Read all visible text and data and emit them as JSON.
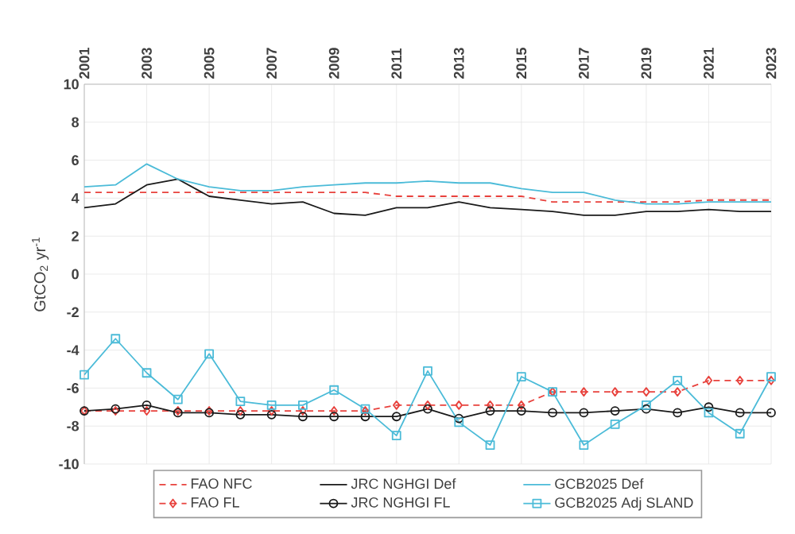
{
  "chart_data": {
    "type": "line",
    "ylabel": "GtCO$_{2}$ yr$^{-1}$",
    "x": [
      2001,
      2002,
      2003,
      2004,
      2005,
      2006,
      2007,
      2008,
      2009,
      2010,
      2011,
      2012,
      2013,
      2014,
      2015,
      2016,
      2017,
      2018,
      2019,
      2020,
      2021,
      2022,
      2023
    ],
    "xlim": [
      2001,
      2023
    ],
    "xticks": [
      2001,
      2003,
      2005,
      2007,
      2009,
      2011,
      2013,
      2015,
      2017,
      2019,
      2021,
      2023
    ],
    "ylim": [
      -10,
      10
    ],
    "yticks": [
      -10,
      -8,
      -6,
      -4,
      -2,
      0,
      2,
      4,
      6,
      8,
      10
    ],
    "grid": true,
    "legend": "bottom",
    "series": [
      {
        "name": "FAO NFC",
        "color": "#e8413c",
        "line_style": "dashed",
        "marker": "none",
        "values": [
          4.3,
          4.3,
          4.3,
          4.3,
          4.3,
          4.3,
          4.3,
          4.3,
          4.3,
          4.3,
          4.1,
          4.1,
          4.1,
          4.1,
          4.1,
          3.8,
          3.8,
          3.8,
          3.8,
          3.8,
          3.9,
          3.9,
          3.9
        ]
      },
      {
        "name": "JRC NGHGI Def",
        "color": "#1a1a1a",
        "line_style": "solid",
        "marker": "none",
        "values": [
          3.5,
          3.7,
          4.7,
          5.0,
          4.1,
          3.9,
          3.7,
          3.8,
          3.2,
          3.1,
          3.5,
          3.5,
          3.8,
          3.5,
          3.4,
          3.3,
          3.1,
          3.1,
          3.3,
          3.3,
          3.4,
          3.3,
          3.3
        ]
      },
      {
        "name": "GCB2025 Def",
        "color": "#4bbbd8",
        "line_style": "solid",
        "marker": "none",
        "values": [
          4.6,
          4.7,
          5.8,
          5.0,
          4.6,
          4.4,
          4.4,
          4.6,
          4.7,
          4.8,
          4.8,
          4.9,
          4.8,
          4.8,
          4.5,
          4.3,
          4.3,
          3.9,
          3.7,
          3.7,
          3.8,
          3.8,
          3.8
        ]
      },
      {
        "name": "FAO FL",
        "color": "#e8413c",
        "line_style": "dashed",
        "marker": "diamond",
        "values": [
          -7.2,
          -7.2,
          -7.2,
          -7.2,
          -7.2,
          -7.2,
          -7.2,
          -7.2,
          -7.2,
          -7.2,
          -6.9,
          -6.9,
          -6.9,
          -6.9,
          -6.9,
          -6.2,
          -6.2,
          -6.2,
          -6.2,
          -6.2,
          -5.6,
          -5.6,
          -5.6
        ]
      },
      {
        "name": "JRC NGHGI FL",
        "color": "#1a1a1a",
        "line_style": "solid",
        "marker": "circle",
        "values": [
          -7.2,
          -7.1,
          -6.9,
          -7.3,
          -7.3,
          -7.4,
          -7.4,
          -7.5,
          -7.5,
          -7.5,
          -7.5,
          -7.1,
          -7.6,
          -7.2,
          -7.2,
          -7.3,
          -7.3,
          -7.2,
          -7.1,
          -7.3,
          -7.0,
          -7.3,
          -7.3
        ]
      },
      {
        "name": "GCB2025 Adj SLAND",
        "color": "#4bbbd8",
        "line_style": "solid",
        "marker": "square",
        "values": [
          -5.3,
          -3.4,
          -5.2,
          -6.6,
          -4.2,
          -6.7,
          -6.9,
          -6.9,
          -6.1,
          -7.1,
          -8.5,
          -5.1,
          -7.8,
          -9.0,
          -5.4,
          -6.2,
          -9.0,
          -7.9,
          -6.9,
          -5.6,
          -7.3,
          -8.4,
          -5.4
        ]
      }
    ]
  }
}
